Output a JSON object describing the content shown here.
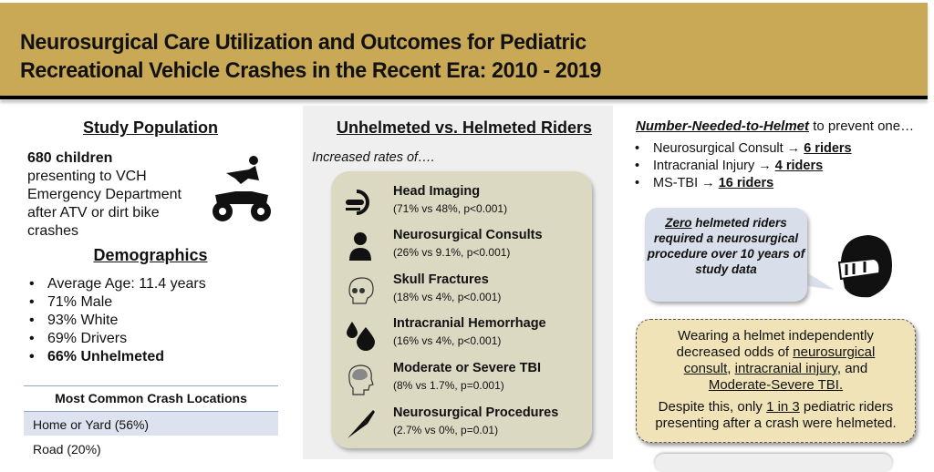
{
  "header": {
    "title_line1": "Neurosurgical Care Utilization and Outcomes for Pediatric",
    "title_line2": "Recreational Vehicle Crashes in the Recent Era: 2010 - 2019"
  },
  "left": {
    "heading": "Study Population",
    "count": "680 children",
    "desc": [
      "presenting to VCH",
      "Emergency Department",
      "after ATV or dirt bike",
      "crashes"
    ],
    "demo_heading": "Demographics",
    "demographics": [
      "Average Age: 11.4 years",
      "71% Male",
      "93% White",
      "69% Drivers",
      "66% Unhelmeted"
    ],
    "table_header": "Most Common Crash Locations",
    "table_rows": [
      "Home or Yard (56%)",
      "Road (20%)"
    ]
  },
  "middle": {
    "heading": "Unhelmeted vs. Helmeted Riders",
    "intro": "Increased rates of….",
    "items": [
      {
        "icon": "ct-scanner-icon",
        "title": "Head Imaging",
        "stats": "(71% vs 48%, p<0.001)"
      },
      {
        "icon": "doctor-icon",
        "title": "Neurosurgical Consults",
        "stats": "(26% vs 9.1%, p<0.001)"
      },
      {
        "icon": "skull-icon",
        "title": "Skull Fractures",
        "stats": "(18% vs 4%, p<0.001)"
      },
      {
        "icon": "blood-drops-icon",
        "title": "Intracranial Hemorrhage",
        "stats": "(16% vs 4%, p<0.001)"
      },
      {
        "icon": "brain-head-icon",
        "title": "Moderate or Severe TBI",
        "stats": "(8% vs 1.7%, p=0.001)"
      },
      {
        "icon": "scalpel-icon",
        "title": "Neurosurgical Procedures",
        "stats": "(2.7% vs 0%, p=0.01)"
      }
    ]
  },
  "right": {
    "nnh_title": "Number-Needed-to-Helmet",
    "nnh_suffix": " to prevent one…",
    "nnh": [
      {
        "label": "Neurosurgical Consult → ",
        "value": "6 riders"
      },
      {
        "label": "Intracranial Injury → ",
        "value": "4 riders"
      },
      {
        "label": "MS-TBI → ",
        "value": "16 riders"
      }
    ],
    "bubble_zero": "Zero",
    "bubble_text": " helmeted riders required a neurosurgical procedure over 10 years of study data",
    "box_p1a": "Wearing a helmet independently decreased odds of ",
    "box_u1": "neurosurgical consult",
    "box_p1b": ", ",
    "box_u2": "intracranial injury,",
    "box_p1c": " and ",
    "box_u3": "Moderate-Severe TBI.",
    "box_p2a": "Despite this, only ",
    "box_u4": "1 in 3",
    "box_p2b": " pediatric riders presenting after a crash were helmeted."
  }
}
